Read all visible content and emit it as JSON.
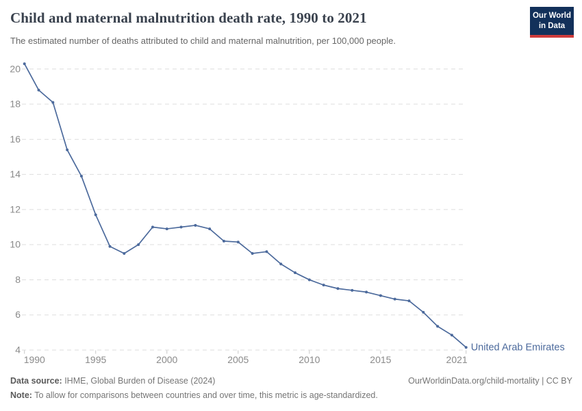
{
  "header": {
    "title": "Child and maternal malnutrition death rate, 1990 to 2021",
    "subtitle": "The estimated number of deaths attributed to child and maternal malnutrition, per 100,000 people.",
    "logo": {
      "line1": "Our World",
      "line2": "in Data"
    }
  },
  "chart_data": {
    "type": "line",
    "title": "Child and maternal malnutrition death rate, 1990 to 2021",
    "xlabel": "",
    "ylabel": "",
    "xlim": [
      1990,
      2021
    ],
    "ylim": [
      4,
      20
    ],
    "grid": "horizontal-dashed",
    "legend_position": "end-of-line-label",
    "x_ticks": [
      1990,
      1995,
      2000,
      2005,
      2010,
      2015,
      2021
    ],
    "y_ticks": [
      4,
      6,
      8,
      10,
      12,
      14,
      16,
      18,
      20
    ],
    "series": [
      {
        "name": "United Arab Emirates",
        "color": "#4c6a9c",
        "x": [
          1990,
          1991,
          1992,
          1993,
          1994,
          1995,
          1996,
          1997,
          1998,
          1999,
          2000,
          2001,
          2002,
          2003,
          2004,
          2005,
          2006,
          2007,
          2008,
          2009,
          2010,
          2011,
          2012,
          2013,
          2014,
          2015,
          2016,
          2017,
          2018,
          2019,
          2020,
          2021
        ],
        "values": [
          20.3,
          18.8,
          18.1,
          15.4,
          13.9,
          11.7,
          9.9,
          9.5,
          10.0,
          11.0,
          10.9,
          11.0,
          11.1,
          10.9,
          10.2,
          10.15,
          9.5,
          9.6,
          8.9,
          8.4,
          8.0,
          7.7,
          7.5,
          7.4,
          7.3,
          7.1,
          6.9,
          6.8,
          6.15,
          5.35,
          4.85,
          4.15
        ]
      }
    ]
  },
  "colors": {
    "line": "#4c6a9c",
    "grid": "#dedede",
    "tick": "#c8c8c8",
    "axis_text": "#8a8a8a"
  },
  "footer": {
    "source_label": "Data source:",
    "source_text": " IHME, Global Burden of Disease (2024)",
    "link_text": "OurWorldinData.org/child-mortality | CC BY",
    "note_label": "Note:",
    "note_text": " To allow for comparisons between countries and over time, this metric is age-standardized."
  }
}
